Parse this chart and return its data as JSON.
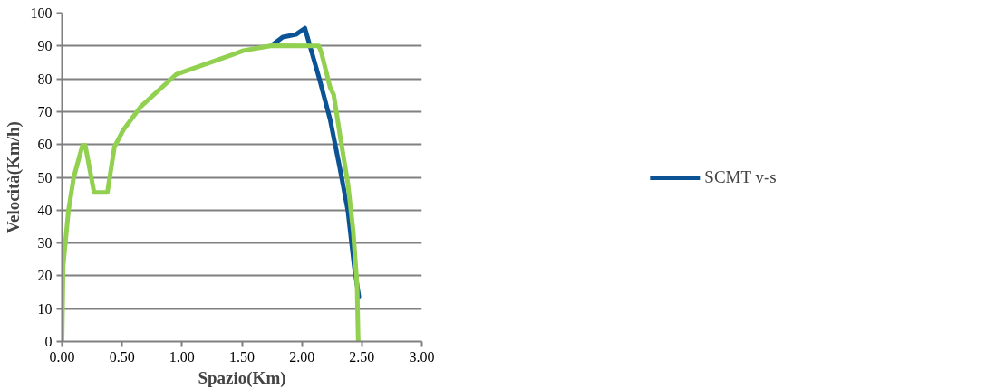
{
  "chart_data": {
    "type": "line",
    "xlabel": "Spazio(Km)",
    "ylabel": "Velocità(Km/h)",
    "xlim": [
      0,
      3
    ],
    "ylim": [
      0,
      100
    ],
    "xticks": [
      {
        "value": 0,
        "label": "0.00"
      },
      {
        "value": 0.5,
        "label": "0.50"
      },
      {
        "value": 1,
        "label": "1.00"
      },
      {
        "value": 1.5,
        "label": "1.50"
      },
      {
        "value": 2,
        "label": "2.00"
      },
      {
        "value": 2.5,
        "label": "2.50"
      },
      {
        "value": 3,
        "label": "3.00"
      }
    ],
    "yticks": [
      0,
      10,
      20,
      30,
      40,
      50,
      60,
      70,
      80,
      90,
      100
    ],
    "grid": "y",
    "legend": "right",
    "marker": "none",
    "line_style": "solid",
    "series": [
      {
        "name": "SCMT v-s",
        "color": "#0b5394",
        "x": [
          1.75,
          1.84,
          1.95,
          2.025,
          2.147,
          2.236,
          2.31,
          2.384,
          2.435,
          2.475
        ],
        "values": [
          90.2,
          92.7,
          93.5,
          95.4,
          79.8,
          67.5,
          54,
          39.7,
          23.2,
          13.7
        ]
      },
      {
        "color": "#92d050",
        "x": [
          0,
          0.009,
          0.053,
          0.097,
          0.171,
          0.193,
          0.267,
          0.378,
          0.437,
          0.51,
          0.658,
          0.953,
          1.395,
          1.513,
          1.749,
          2.14,
          2.162,
          2.236,
          2.265,
          2.324,
          2.384,
          2.428,
          2.46,
          2.469,
          2.47
        ],
        "values": [
          0,
          23,
          39.8,
          50,
          59.8,
          59.8,
          45.4,
          45.4,
          59.3,
          64.4,
          71.6,
          81.4,
          87,
          88.6,
          90.1,
          90,
          88,
          77.3,
          75.2,
          61.3,
          47.9,
          33.5,
          17,
          1,
          0
        ]
      }
    ]
  }
}
